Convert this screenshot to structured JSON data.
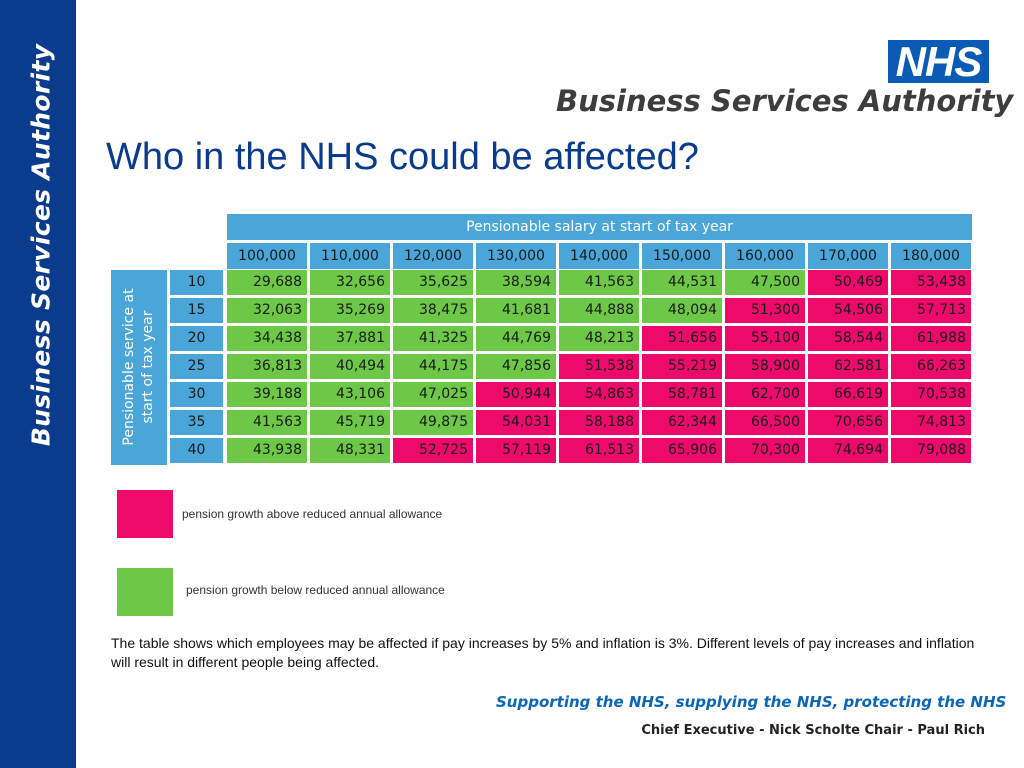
{
  "sidebar": {
    "text": "Business Services Authority"
  },
  "logo": {
    "nhs": "NHS",
    "name": "Business Services Authority"
  },
  "title": "Who in the NHS could be affected?",
  "table": {
    "header": "Pensionable salary at start of tax year",
    "row_axis_label": "Pensionable service at start of tax year",
    "columns": [
      "100,000",
      "110,000",
      "120,000",
      "130,000",
      "140,000",
      "150,000",
      "160,000",
      "170,000",
      "180,000"
    ],
    "rows": [
      {
        "service": "10",
        "values": [
          "29,688",
          "32,656",
          "35,625",
          "38,594",
          "41,563",
          "44,531",
          "47,500",
          "50,469",
          "53,438"
        ],
        "status": [
          "g",
          "g",
          "g",
          "g",
          "g",
          "g",
          "g",
          "p",
          "p"
        ]
      },
      {
        "service": "15",
        "values": [
          "32,063",
          "35,269",
          "38,475",
          "41,681",
          "44,888",
          "48,094",
          "51,300",
          "54,506",
          "57,713"
        ],
        "status": [
          "g",
          "g",
          "g",
          "g",
          "g",
          "g",
          "p",
          "p",
          "p"
        ]
      },
      {
        "service": "20",
        "values": [
          "34,438",
          "37,881",
          "41,325",
          "44,769",
          "48,213",
          "51,656",
          "55,100",
          "58,544",
          "61,988"
        ],
        "status": [
          "g",
          "g",
          "g",
          "g",
          "g",
          "p",
          "p",
          "p",
          "p"
        ]
      },
      {
        "service": "25",
        "values": [
          "36,813",
          "40,494",
          "44,175",
          "47,856",
          "51,538",
          "55,219",
          "58,900",
          "62,581",
          "66,263"
        ],
        "status": [
          "g",
          "g",
          "g",
          "g",
          "p",
          "p",
          "p",
          "p",
          "p"
        ]
      },
      {
        "service": "30",
        "values": [
          "39,188",
          "43,106",
          "47,025",
          "50,944",
          "54,863",
          "58,781",
          "62,700",
          "66,619",
          "70,538"
        ],
        "status": [
          "g",
          "g",
          "g",
          "p",
          "p",
          "p",
          "p",
          "p",
          "p"
        ]
      },
      {
        "service": "35",
        "values": [
          "41,563",
          "45,719",
          "49,875",
          "54,031",
          "58,188",
          "62,344",
          "66,500",
          "70,656",
          "74,813"
        ],
        "status": [
          "g",
          "g",
          "g",
          "p",
          "p",
          "p",
          "p",
          "p",
          "p"
        ]
      },
      {
        "service": "40",
        "values": [
          "43,938",
          "48,331",
          "52,725",
          "57,119",
          "61,513",
          "65,906",
          "70,300",
          "74,694",
          "79,088"
        ],
        "status": [
          "g",
          "g",
          "p",
          "p",
          "p",
          "p",
          "p",
          "p",
          "p"
        ]
      }
    ]
  },
  "legend": {
    "above": {
      "label": "pension growth above reduced annual allowance",
      "color": "#ee0a6b"
    },
    "below": {
      "label": "pension growth below reduced annual allowance",
      "color": "#6dc848"
    }
  },
  "note": "The table shows which employees may be affected if pay increases by 5% and inflation is 3%.  Different levels of pay increases and inflation will result in different people being affected.",
  "footer": {
    "slogan": "Supporting the NHS, supplying the NHS, protecting the NHS",
    "exec": "Chief Executive - Nick Scholte   Chair - Paul Rich"
  }
}
